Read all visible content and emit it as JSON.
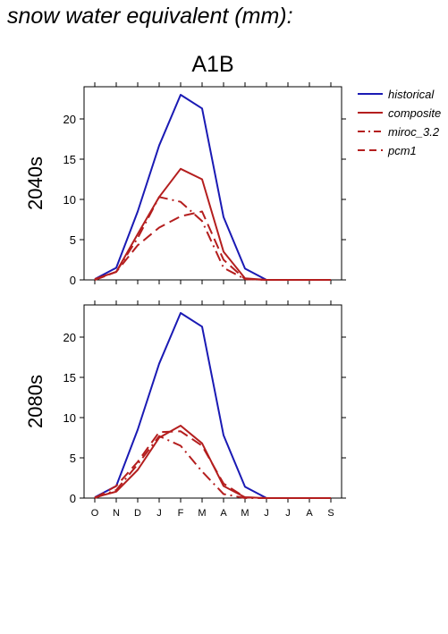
{
  "page": {
    "title": "snow water equivalent (mm):"
  },
  "chart_data": {
    "type": "line",
    "title": "A1B",
    "x": [
      "O",
      "N",
      "D",
      "J",
      "F",
      "M",
      "A",
      "M",
      "J",
      "J",
      "A",
      "S"
    ],
    "ylim": [
      0,
      24
    ],
    "yticks": [
      0,
      5,
      10,
      15,
      20
    ],
    "legend_position": "right",
    "legend": [
      "historical",
      "composite",
      "miroc_3.2",
      "pcm1"
    ],
    "style": {
      "historical": {
        "color": "#1a1ab4",
        "dash": ""
      },
      "composite": {
        "color": "#b41e1e",
        "dash": ""
      },
      "miroc_3.2": {
        "color": "#b41e1e",
        "dash": "12,5,2,5"
      },
      "pcm1": {
        "color": "#b41e1e",
        "dash": "12,6"
      }
    },
    "panels": [
      {
        "ylabel": "2040s",
        "series": [
          {
            "name": "historical",
            "values": [
              0.1,
              1.5,
              8.5,
              16.7,
              23.0,
              21.3,
              7.8,
              1.4,
              0.0,
              0.0,
              0.0,
              0.0
            ]
          },
          {
            "name": "composite",
            "values": [
              0.1,
              1.0,
              5.7,
              10.3,
              13.8,
              12.5,
              3.5,
              0.2,
              0.0,
              0.0,
              0.0,
              0.0
            ]
          },
          {
            "name": "miroc_3.2",
            "values": [
              0.0,
              1.0,
              5.2,
              10.3,
              9.7,
              7.3,
              1.5,
              0.1,
              0.0,
              0.0,
              0.0,
              0.0
            ]
          },
          {
            "name": "pcm1",
            "values": [
              0.0,
              1.0,
              4.3,
              6.5,
              7.9,
              8.5,
              2.5,
              0.1,
              0.0,
              0.0,
              0.0,
              0.0
            ]
          }
        ]
      },
      {
        "ylabel": "2080s",
        "series": [
          {
            "name": "historical",
            "values": [
              0.1,
              1.5,
              8.5,
              16.7,
              23.0,
              21.3,
              7.8,
              1.4,
              0.0,
              0.0,
              0.0,
              0.0
            ]
          },
          {
            "name": "composite",
            "values": [
              0.1,
              0.8,
              3.5,
              7.5,
              9.0,
              6.8,
              1.5,
              0.1,
              0.0,
              0.0,
              0.0,
              0.0
            ]
          },
          {
            "name": "miroc_3.2",
            "values": [
              0.0,
              1.0,
              4.2,
              7.7,
              6.5,
              3.3,
              0.5,
              0.0,
              0.0,
              0.0,
              0.0,
              0.0
            ]
          },
          {
            "name": "pcm1",
            "values": [
              0.0,
              1.5,
              4.5,
              8.2,
              8.3,
              6.5,
              1.8,
              0.1,
              0.0,
              0.0,
              0.0,
              0.0
            ]
          }
        ]
      }
    ]
  }
}
